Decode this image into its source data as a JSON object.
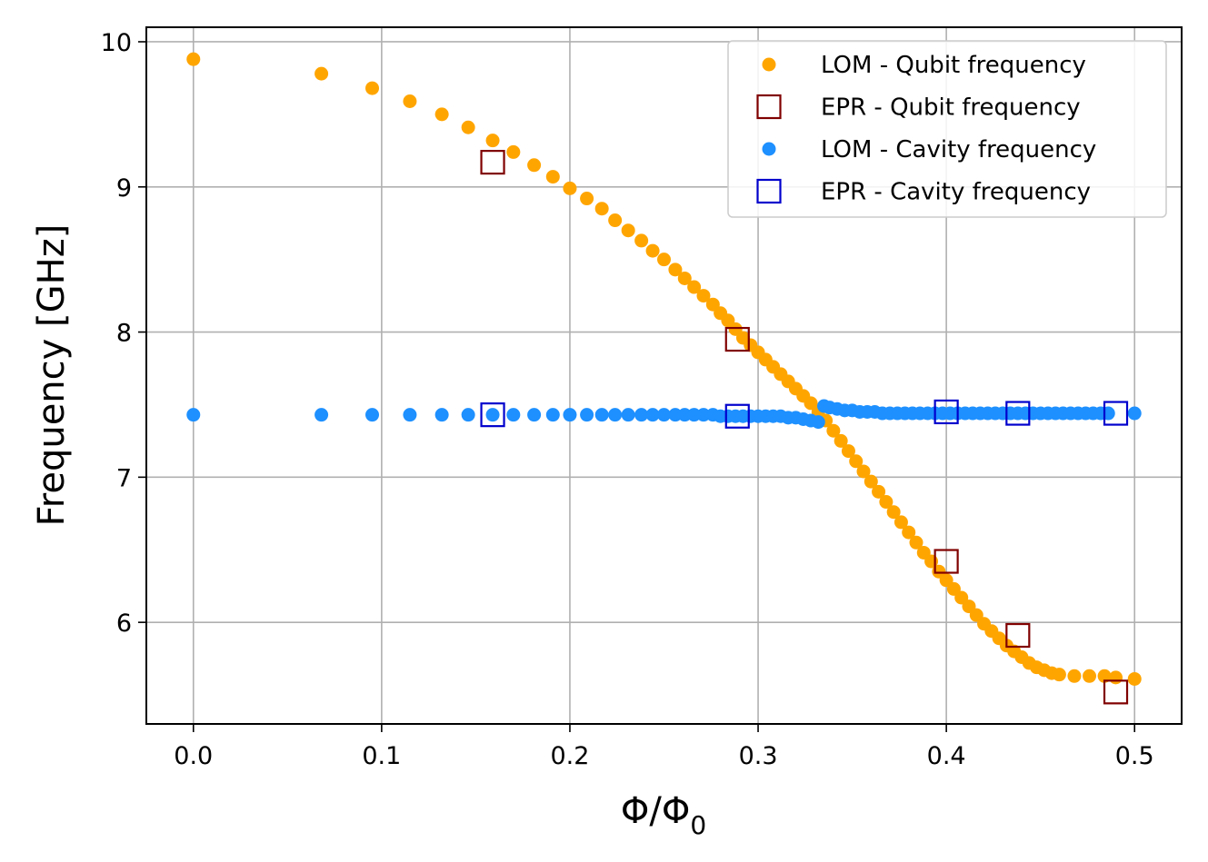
{
  "chart_data": {
    "type": "scatter",
    "title": "",
    "xlabel": "Φ/Φ",
    "xlabel_sub": "0",
    "ylabel": "Frequency [GHz]",
    "xlim": [
      -0.025,
      0.525
    ],
    "ylim": [
      5.3,
      10.1
    ],
    "grid": true,
    "legend_position": "top-right",
    "x_ticks": [
      0.0,
      0.1,
      0.2,
      0.3,
      0.4,
      0.5
    ],
    "x_tick_labels": [
      "0.0",
      "0.1",
      "0.2",
      "0.3",
      "0.4",
      "0.5"
    ],
    "y_ticks": [
      6,
      7,
      8,
      9,
      10
    ],
    "y_tick_labels": [
      "6",
      "7",
      "8",
      "9",
      "10"
    ],
    "series": [
      {
        "name": "LOM - Qubit frequency",
        "marker": "dot",
        "color": "#FFA500",
        "points": [
          [
            0.0,
            9.88
          ],
          [
            0.068,
            9.78
          ],
          [
            0.095,
            9.68
          ],
          [
            0.115,
            9.59
          ],
          [
            0.132,
            9.5
          ],
          [
            0.146,
            9.41
          ],
          [
            0.159,
            9.32
          ],
          [
            0.17,
            9.24
          ],
          [
            0.181,
            9.15
          ],
          [
            0.191,
            9.07
          ],
          [
            0.2,
            8.99
          ],
          [
            0.209,
            8.92
          ],
          [
            0.217,
            8.85
          ],
          [
            0.224,
            8.77
          ],
          [
            0.231,
            8.7
          ],
          [
            0.238,
            8.63
          ],
          [
            0.244,
            8.56
          ],
          [
            0.25,
            8.5
          ],
          [
            0.256,
            8.43
          ],
          [
            0.261,
            8.37
          ],
          [
            0.266,
            8.31
          ],
          [
            0.271,
            8.25
          ],
          [
            0.276,
            8.19
          ],
          [
            0.28,
            8.13
          ],
          [
            0.284,
            8.08
          ],
          [
            0.288,
            8.02
          ],
          [
            0.292,
            7.96
          ],
          [
            0.296,
            7.91
          ],
          [
            0.3,
            7.86
          ],
          [
            0.304,
            7.81
          ],
          [
            0.308,
            7.76
          ],
          [
            0.312,
            7.71
          ],
          [
            0.316,
            7.66
          ],
          [
            0.32,
            7.61
          ],
          [
            0.324,
            7.56
          ],
          [
            0.328,
            7.51
          ],
          [
            0.332,
            7.45
          ],
          [
            0.336,
            7.39
          ],
          [
            0.34,
            7.32
          ],
          [
            0.344,
            7.25
          ],
          [
            0.348,
            7.18
          ],
          [
            0.352,
            7.11
          ],
          [
            0.356,
            7.04
          ],
          [
            0.36,
            6.97
          ],
          [
            0.364,
            6.9
          ],
          [
            0.368,
            6.83
          ],
          [
            0.372,
            6.76
          ],
          [
            0.376,
            6.69
          ],
          [
            0.38,
            6.62
          ],
          [
            0.384,
            6.55
          ],
          [
            0.388,
            6.48
          ],
          [
            0.392,
            6.42
          ],
          [
            0.396,
            6.35
          ],
          [
            0.4,
            6.29
          ],
          [
            0.404,
            6.23
          ],
          [
            0.408,
            6.17
          ],
          [
            0.412,
            6.11
          ],
          [
            0.416,
            6.05
          ],
          [
            0.42,
            5.99
          ],
          [
            0.424,
            5.94
          ],
          [
            0.428,
            5.89
          ],
          [
            0.432,
            5.84
          ],
          [
            0.436,
            5.8
          ],
          [
            0.44,
            5.76
          ],
          [
            0.444,
            5.72
          ],
          [
            0.448,
            5.69
          ],
          [
            0.452,
            5.67
          ],
          [
            0.456,
            5.65
          ],
          [
            0.46,
            5.64
          ],
          [
            0.468,
            5.63
          ],
          [
            0.476,
            5.63
          ],
          [
            0.484,
            5.63
          ],
          [
            0.49,
            5.62
          ],
          [
            0.5,
            5.61
          ]
        ]
      },
      {
        "name": "EPR - Qubit frequency",
        "marker": "square",
        "color": "#800000",
        "points": [
          [
            0.159,
            9.17
          ],
          [
            0.289,
            7.95
          ],
          [
            0.4,
            6.42
          ],
          [
            0.438,
            5.91
          ],
          [
            0.49,
            5.52
          ]
        ]
      },
      {
        "name": "LOM - Cavity frequency",
        "marker": "dot",
        "color": "#1E90FF",
        "points": [
          [
            0.0,
            7.43
          ],
          [
            0.068,
            7.43
          ],
          [
            0.095,
            7.43
          ],
          [
            0.115,
            7.43
          ],
          [
            0.132,
            7.43
          ],
          [
            0.146,
            7.43
          ],
          [
            0.159,
            7.43
          ],
          [
            0.17,
            7.43
          ],
          [
            0.181,
            7.43
          ],
          [
            0.191,
            7.43
          ],
          [
            0.2,
            7.43
          ],
          [
            0.209,
            7.43
          ],
          [
            0.217,
            7.43
          ],
          [
            0.224,
            7.43
          ],
          [
            0.231,
            7.43
          ],
          [
            0.238,
            7.43
          ],
          [
            0.244,
            7.43
          ],
          [
            0.25,
            7.43
          ],
          [
            0.256,
            7.43
          ],
          [
            0.261,
            7.43
          ],
          [
            0.266,
            7.43
          ],
          [
            0.271,
            7.43
          ],
          [
            0.276,
            7.43
          ],
          [
            0.28,
            7.42
          ],
          [
            0.284,
            7.42
          ],
          [
            0.288,
            7.42
          ],
          [
            0.292,
            7.42
          ],
          [
            0.296,
            7.42
          ],
          [
            0.3,
            7.42
          ],
          [
            0.304,
            7.42
          ],
          [
            0.308,
            7.42
          ],
          [
            0.312,
            7.42
          ],
          [
            0.316,
            7.41
          ],
          [
            0.32,
            7.41
          ],
          [
            0.324,
            7.4
          ],
          [
            0.328,
            7.39
          ],
          [
            0.332,
            7.38
          ],
          [
            0.335,
            7.49
          ],
          [
            0.338,
            7.48
          ],
          [
            0.342,
            7.47
          ],
          [
            0.346,
            7.46
          ],
          [
            0.35,
            7.46
          ],
          [
            0.354,
            7.45
          ],
          [
            0.358,
            7.45
          ],
          [
            0.362,
            7.45
          ],
          [
            0.366,
            7.44
          ],
          [
            0.37,
            7.44
          ],
          [
            0.374,
            7.44
          ],
          [
            0.378,
            7.44
          ],
          [
            0.382,
            7.44
          ],
          [
            0.386,
            7.44
          ],
          [
            0.39,
            7.44
          ],
          [
            0.394,
            7.44
          ],
          [
            0.398,
            7.44
          ],
          [
            0.402,
            7.44
          ],
          [
            0.406,
            7.44
          ],
          [
            0.41,
            7.44
          ],
          [
            0.414,
            7.44
          ],
          [
            0.418,
            7.44
          ],
          [
            0.422,
            7.44
          ],
          [
            0.426,
            7.44
          ],
          [
            0.43,
            7.44
          ],
          [
            0.434,
            7.44
          ],
          [
            0.438,
            7.44
          ],
          [
            0.442,
            7.44
          ],
          [
            0.446,
            7.44
          ],
          [
            0.45,
            7.44
          ],
          [
            0.454,
            7.44
          ],
          [
            0.458,
            7.44
          ],
          [
            0.462,
            7.44
          ],
          [
            0.466,
            7.44
          ],
          [
            0.47,
            7.44
          ],
          [
            0.474,
            7.44
          ],
          [
            0.478,
            7.44
          ],
          [
            0.482,
            7.44
          ],
          [
            0.486,
            7.44
          ],
          [
            0.5,
            7.44
          ]
        ]
      },
      {
        "name": "EPR - Cavity frequency",
        "marker": "square",
        "color": "#0000CD",
        "points": [
          [
            0.159,
            7.43
          ],
          [
            0.289,
            7.42
          ],
          [
            0.4,
            7.45
          ],
          [
            0.438,
            7.44
          ],
          [
            0.49,
            7.44
          ]
        ]
      }
    ]
  }
}
